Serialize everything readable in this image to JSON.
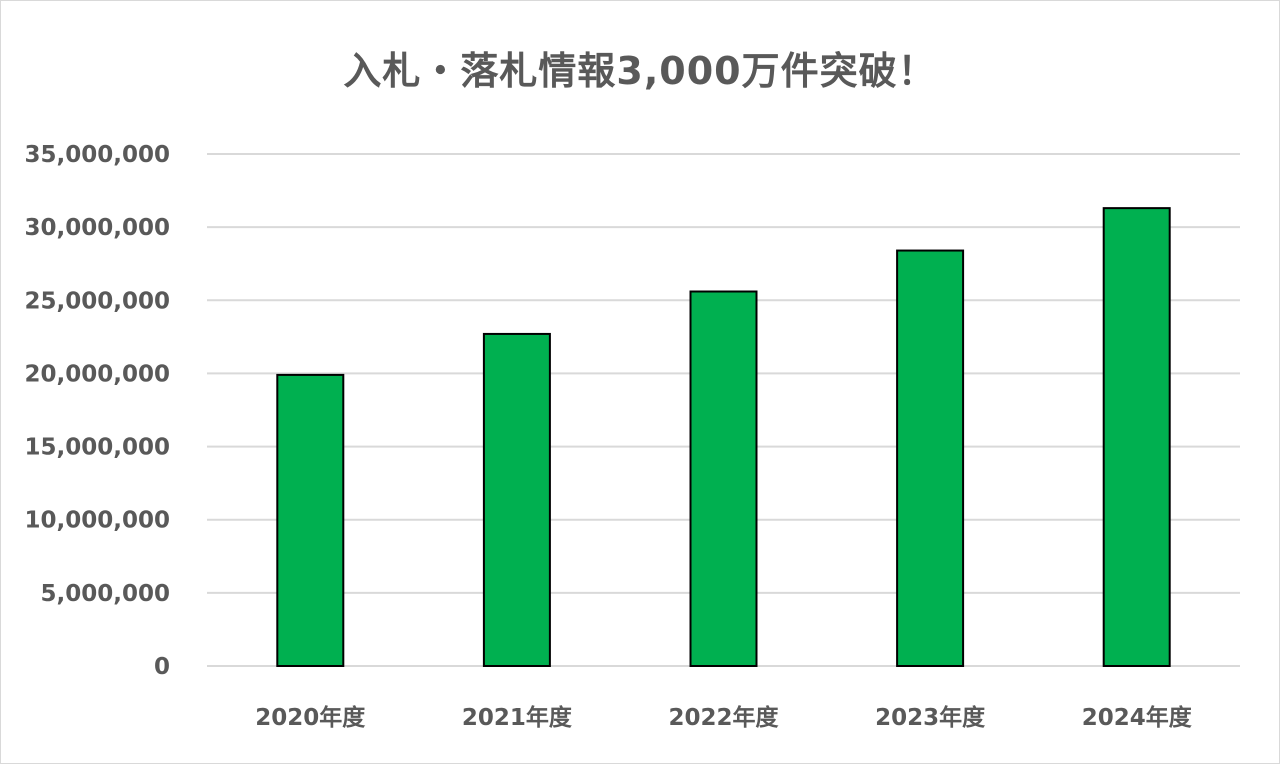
{
  "chart_data": {
    "type": "bar",
    "title": "入札・落札情報3,000万件突破！",
    "xlabel": "",
    "ylabel": "",
    "categories": [
      "2020年度",
      "2021年度",
      "2022年度",
      "2023年度",
      "2024年度"
    ],
    "series": [
      {
        "values": [
          19900000,
          22700000,
          25600000,
          28400000,
          31300000
        ],
        "color": "#00b050"
      }
    ],
    "ylim": [
      0,
      35000000
    ],
    "yticks": [
      0,
      5000000,
      10000000,
      15000000,
      20000000,
      25000000,
      30000000,
      35000000
    ],
    "ytick_labels": [
      "0",
      "5,000,000",
      "10,000,000",
      "15,000,000",
      "20,000,000",
      "25,000,000",
      "30,000,000",
      "35,000,000"
    ],
    "grid": true,
    "legend": "none",
    "colors": {
      "bar_fill": "#00b050",
      "bar_stroke": "#000000",
      "grid": "#d9d9d9",
      "text": "#595959"
    }
  }
}
